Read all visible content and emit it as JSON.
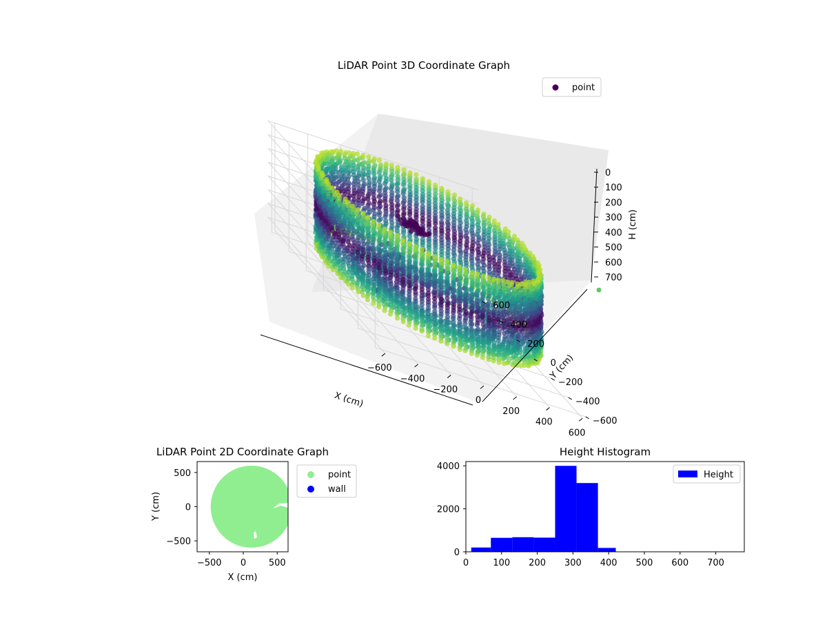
{
  "chart_data": [
    {
      "type": "scatter",
      "title": "LiDAR Point 3D Coordinate Graph",
      "xlabel": "X (cm)",
      "ylabel": "Y (cm)",
      "zlabel": "H (cm)",
      "xlim": [
        -650,
        650
      ],
      "ylim": [
        -650,
        650
      ],
      "zlim": [
        780,
        0
      ],
      "x_ticks": [
        -600,
        -400,
        -200,
        0,
        200,
        400,
        600
      ],
      "y_ticks": [
        -600,
        -400,
        -200,
        0,
        200,
        400,
        600
      ],
      "z_ticks": [
        0,
        100,
        200,
        300,
        400,
        500,
        600,
        700
      ],
      "z_inverted": true,
      "grid": true,
      "legend": {
        "position": "top-right",
        "entries": [
          "point"
        ]
      },
      "series": [
        {
          "name": "point",
          "color_map": "viridis",
          "description_of_structure": {
            "outer_wall_radius": 600,
            "wall_height_range": [
              0,
              600
            ],
            "inner_ring_radii": [
              320,
              440
            ],
            "central_block": {
              "x": [
                -150,
                0
              ],
              "y": [
                -20,
                80
              ],
              "h": [
                100,
                140
              ]
            }
          }
        }
      ]
    },
    {
      "type": "scatter",
      "title": "LiDAR Point 2D Coordinate Graph",
      "xlabel": "X (cm)",
      "ylabel": "Y (cm)",
      "xlim": [
        -680,
        660
      ],
      "ylim": [
        -660,
        660
      ],
      "x_ticks": [
        -500,
        0,
        500
      ],
      "y_ticks": [
        -500,
        0,
        500
      ],
      "legend": {
        "position": "outside-right",
        "entries": [
          "point",
          "wall"
        ]
      },
      "series": [
        {
          "name": "point",
          "color": "#90ee90",
          "filled_disk": {
            "center": [
              120,
              0
            ],
            "radius": 600
          }
        },
        {
          "name": "wall",
          "color": "#0000ff"
        }
      ]
    },
    {
      "type": "bar",
      "title": "Height Histogram",
      "xlim": [
        0,
        780
      ],
      "ylim": [
        0,
        4200
      ],
      "x_ticks": [
        0,
        100,
        200,
        300,
        400,
        500,
        600,
        700
      ],
      "y_ticks": [
        0,
        2000,
        4000
      ],
      "legend": {
        "position": "top-right",
        "entries": [
          "Height"
        ]
      },
      "color": "#0000ff",
      "bins": [
        {
          "from": 15,
          "to": 70,
          "count": 200
        },
        {
          "from": 70,
          "to": 130,
          "count": 650
        },
        {
          "from": 130,
          "to": 190,
          "count": 680
        },
        {
          "from": 190,
          "to": 250,
          "count": 660
        },
        {
          "from": 250,
          "to": 310,
          "count": 4000
        },
        {
          "from": 310,
          "to": 370,
          "count": 3200
        },
        {
          "from": 370,
          "to": 420,
          "count": 180
        }
      ]
    }
  ]
}
